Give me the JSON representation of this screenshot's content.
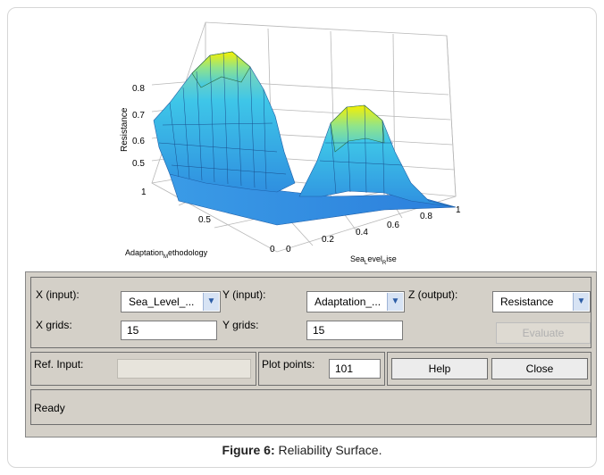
{
  "plot": {
    "zlabel": "Resistance",
    "xlabel": "Adaptation",
    "xlabel_sub": "M",
    "xlabel_rest": "ethodology",
    "ylabel": "Sea",
    "ylabel_sub1": "L",
    "ylabel_mid": "evel",
    "ylabel_sub2": "R",
    "ylabel_rest": "ise",
    "z_ticks": [
      "0.8",
      "0.7",
      "0.6",
      "0.5"
    ],
    "adapt_ticks": [
      "1",
      "0.5",
      "0"
    ],
    "sea_ticks": [
      "0",
      "0.2",
      "0.4",
      "0.6",
      "0.8",
      "1"
    ]
  },
  "controls": {
    "x_input_label": "X (input):",
    "x_input_value": "Sea_Level_...",
    "y_input_label": "Y (input):",
    "y_input_value": "Adaptation_...",
    "z_output_label": "Z (output):",
    "z_output_value": "Resistance",
    "x_grids_label": "X grids:",
    "x_grids_value": "15",
    "y_grids_label": "Y grids:",
    "y_grids_value": "15",
    "evaluate_label": "Evaluate",
    "ref_input_label": "Ref. Input:",
    "ref_input_value": "",
    "plot_points_label": "Plot points:",
    "plot_points_value": "101",
    "help_label": "Help",
    "close_label": "Close",
    "status": "Ready"
  },
  "caption": {
    "figure": "Figure 6:",
    "text": " Reliability Surface."
  },
  "colors": {
    "panel": "#d4d0c8",
    "surface_low": "#2f7fe0",
    "surface_mid": "#3fd0e8",
    "surface_high": "#f4f000"
  }
}
